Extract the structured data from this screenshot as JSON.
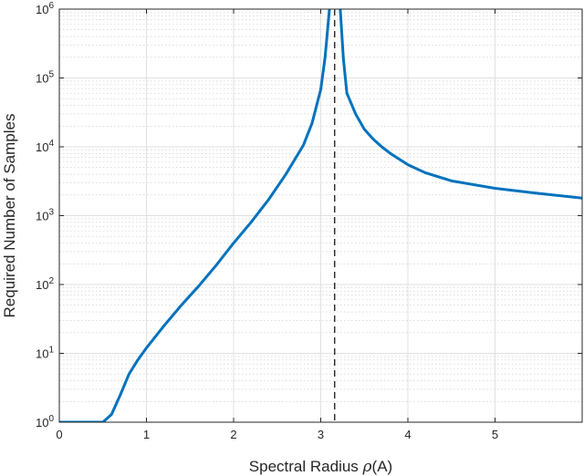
{
  "chart_data": {
    "type": "line",
    "title": "",
    "xlabel_prefix": "Spectral Radius ",
    "xlabel_symbol": "ρ",
    "xlabel_suffix": "(A)",
    "ylabel": "Required Number of Samples",
    "xlim": [
      0,
      6
    ],
    "ylim": [
      1,
      1000000
    ],
    "yscale": "log",
    "grid": true,
    "minor_grid": true,
    "x_ticks": [
      0,
      1,
      2,
      3,
      4,
      5
    ],
    "x_tick_labels": [
      "0",
      "1",
      "2",
      "3",
      "4",
      "5"
    ],
    "y_ticks": [
      1,
      10,
      100,
      1000,
      10000,
      100000,
      1000000
    ],
    "y_tick_labels": [
      {
        "base": "10",
        "exp": "0"
      },
      {
        "base": "10",
        "exp": "1"
      },
      {
        "base": "10",
        "exp": "2"
      },
      {
        "base": "10",
        "exp": "3"
      },
      {
        "base": "10",
        "exp": "4"
      },
      {
        "base": "10",
        "exp": "5"
      },
      {
        "base": "10",
        "exp": "6"
      }
    ],
    "line_color": "#0072BD",
    "reference_line": {
      "x": 3.16,
      "style": "dashed",
      "color": "#000000"
    },
    "series": [
      {
        "x": [
          0,
          0.1,
          0.2,
          0.3,
          0.4,
          0.5,
          0.6,
          0.7,
          0.8,
          0.9,
          1.0,
          1.2,
          1.4,
          1.6,
          1.8,
          2.0,
          2.2,
          2.4,
          2.6,
          2.8,
          2.9,
          3.0,
          3.05,
          3.1,
          3.14,
          3.2,
          3.26,
          3.3,
          3.4,
          3.5,
          3.6,
          3.7,
          3.8,
          4.0,
          4.2,
          4.5,
          5.0,
          5.5,
          6.0
        ],
        "y": [
          1,
          1,
          1,
          1,
          1,
          1,
          1.3,
          2.5,
          5,
          8,
          12,
          25,
          50,
          95,
          190,
          400,
          800,
          1700,
          4000,
          10500,
          22000,
          68000,
          200000,
          1000000,
          3000000,
          3000000,
          190000,
          60000,
          30000,
          18000,
          13000,
          10000,
          8000,
          5500,
          4200,
          3200,
          2500,
          2100,
          1800
        ]
      }
    ]
  }
}
